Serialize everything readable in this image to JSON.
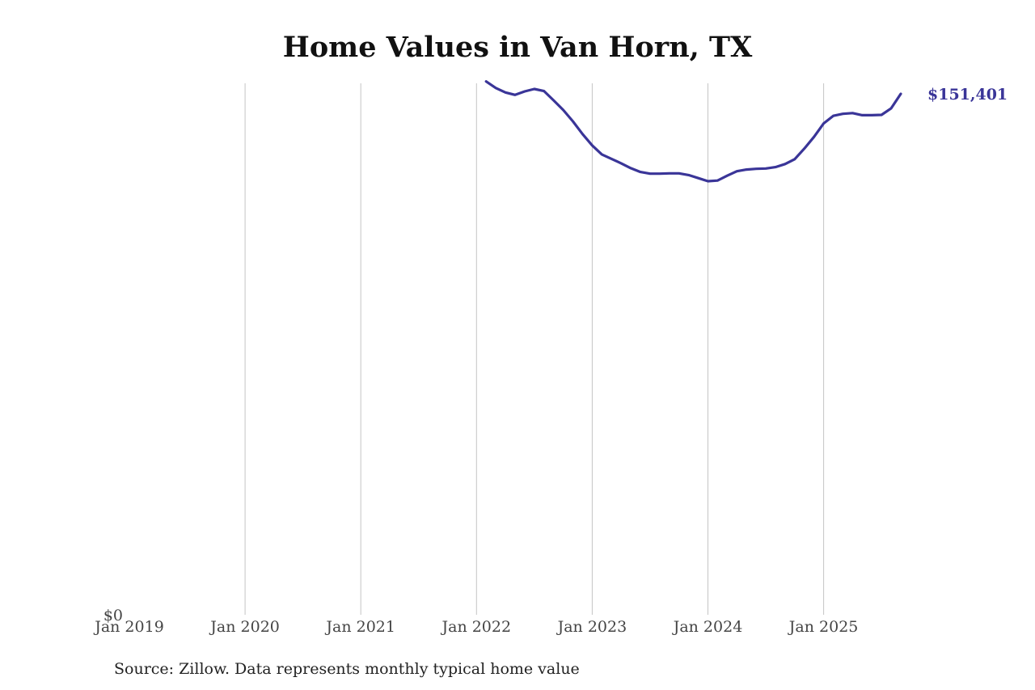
{
  "chart_data": {
    "type": "line",
    "title": "Home Values in Van Horn, TX",
    "xlabel": "",
    "ylabel": "",
    "x_tick_labels": [
      "Jan 2019",
      "Jan 2020",
      "Jan 2021",
      "Jan 2022",
      "Jan 2023",
      "Jan 2024",
      "Jan 2025"
    ],
    "y_tick_labels": [
      "$0"
    ],
    "ylim": [
      0,
      152000
    ],
    "xlim": [
      "2019-01",
      "2025-09"
    ],
    "grid": "vertical",
    "line_color": "#3a3598",
    "end_label": "$151,401",
    "series": [
      {
        "x": [
          "2022-02",
          "2022-03",
          "2022-04",
          "2022-05",
          "2022-06",
          "2022-07",
          "2022-08",
          "2022-09",
          "2022-10",
          "2022-11",
          "2022-12",
          "2023-01",
          "2023-02",
          "2023-03",
          "2023-04",
          "2023-05",
          "2023-06",
          "2023-07",
          "2023-08",
          "2023-09",
          "2023-10",
          "2023-11",
          "2023-12",
          "2024-01",
          "2024-02",
          "2024-03",
          "2024-04",
          "2024-05",
          "2024-06",
          "2024-07",
          "2024-08",
          "2024-09",
          "2024-10",
          "2024-11",
          "2024-12",
          "2025-01",
          "2025-02",
          "2025-03",
          "2025-04",
          "2025-05",
          "2025-06",
          "2025-07",
          "2025-08",
          "2025-09"
        ],
        "values": [
          155000,
          153100,
          151800,
          151100,
          152100,
          152800,
          152200,
          149500,
          146700,
          143400,
          139700,
          136400,
          133800,
          132500,
          131200,
          129800,
          128700,
          128200,
          128200,
          128300,
          128300,
          127800,
          126900,
          126000,
          126200,
          127600,
          128900,
          129400,
          129600,
          129700,
          130100,
          131000,
          132400,
          135500,
          138900,
          142800,
          145000,
          145600,
          145800,
          145200,
          145200,
          145300,
          147200,
          151401
        ]
      }
    ]
  },
  "source": "Source: Zillow. Data represents monthly typical home value"
}
